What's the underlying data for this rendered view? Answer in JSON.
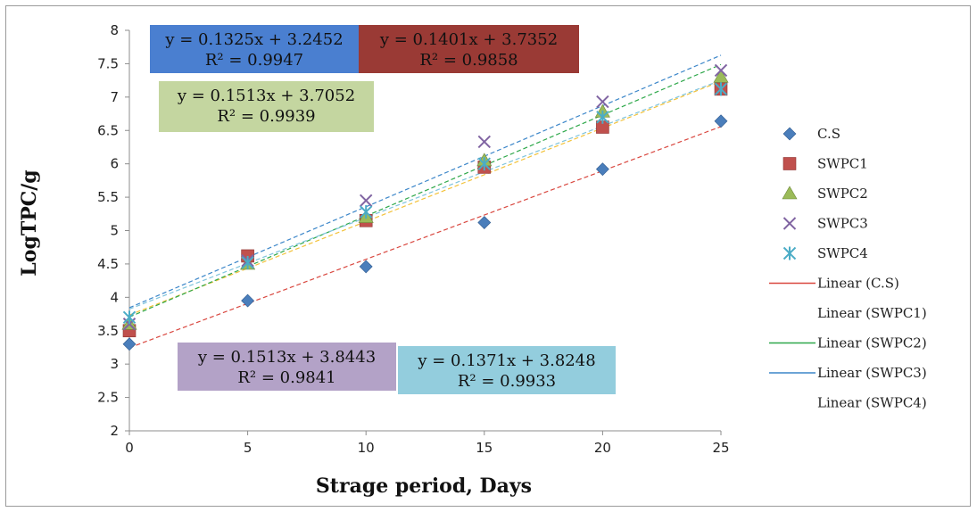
{
  "chart_data": {
    "type": "scatter",
    "title": "",
    "xlabel": "Strage period, Days",
    "ylabel": "LogTPC/g",
    "xlim": [
      0,
      25
    ],
    "ylim": [
      2,
      8
    ],
    "xticks": [
      0,
      5,
      10,
      15,
      20,
      25
    ],
    "yticks": [
      2,
      2.5,
      3,
      3.5,
      4,
      4.5,
      5,
      5.5,
      6,
      6.5,
      7,
      7.5,
      8
    ],
    "ytick_labels": [
      "2",
      "2.5",
      "3",
      "3.5",
      "4",
      "4.5",
      "5",
      "5.5",
      "6",
      "6.5",
      "7",
      "7.5",
      "8"
    ],
    "grid": false,
    "legend_position": "right",
    "x": [
      0,
      5,
      10,
      15,
      20,
      25
    ],
    "series": [
      {
        "name": "C.S",
        "marker": "diamond",
        "color": "#4a7ebb",
        "values": [
          3.3,
          3.95,
          4.46,
          5.12,
          5.92,
          6.64
        ]
      },
      {
        "name": "SWPC1",
        "marker": "square",
        "color": "#c0504d",
        "values": [
          3.5,
          4.62,
          5.15,
          5.95,
          6.55,
          7.12
        ]
      },
      {
        "name": "SWPC2",
        "marker": "triangle",
        "color": "#9bbb59",
        "values": [
          3.6,
          4.5,
          5.2,
          6.05,
          6.78,
          7.3
        ]
      },
      {
        "name": "SWPC3",
        "marker": "x",
        "color": "#8064a2",
        "values": [
          3.6,
          4.55,
          5.45,
          6.33,
          6.93,
          7.4
        ]
      },
      {
        "name": "SWPC4",
        "marker": "star",
        "color": "#4bacc6",
        "values": [
          3.7,
          4.52,
          5.28,
          6.0,
          6.7,
          7.12
        ]
      }
    ],
    "trendlines": [
      {
        "name": "Linear (C.S)",
        "slope": 0.1325,
        "intercept": 3.2452,
        "color": "#d9473f",
        "show_in_legend_line": true
      },
      {
        "name": "Linear (SWPC1)",
        "slope": 0.1401,
        "intercept": 3.7352,
        "color": "#f3c23a",
        "show_in_legend_line": false
      },
      {
        "name": "Linear (SWPC2)",
        "slope": 0.1513,
        "intercept": 3.7052,
        "color": "#2ea84a",
        "show_in_legend_line": true
      },
      {
        "name": "Linear (SWPC3)",
        "slope": 0.1513,
        "intercept": 3.8443,
        "color": "#3b86c9",
        "show_in_legend_line": true
      },
      {
        "name": "Linear (SWPC4)",
        "slope": 0.1371,
        "intercept": 3.8248,
        "color": "#7ec3dc",
        "show_in_legend_line": false
      }
    ],
    "equation_labels": [
      {
        "line1": "y = 0.1325x + 3.2452",
        "line2": "R² = 0.9947",
        "bg": "#4a7fd0",
        "text": "#111111"
      },
      {
        "line1": "y = 0.1401x + 3.7352",
        "line2": "R² = 0.9858",
        "bg": "#9a3a35",
        "text": "#ffffff"
      },
      {
        "line1": "y = 0.1513x + 3.7052",
        "line2": "R² = 0.9939",
        "bg": "#c4d6a0",
        "text": "#111111"
      },
      {
        "line1": "y = 0.1513x + 3.8443",
        "line2": "R² = 0.9841",
        "bg": "#b3a2c7",
        "text": "#111111"
      },
      {
        "line1": "y = 0.1371x + 3.8248",
        "line2": "R² = 0.9933",
        "bg": "#93cddd",
        "text": "#111111"
      }
    ]
  }
}
